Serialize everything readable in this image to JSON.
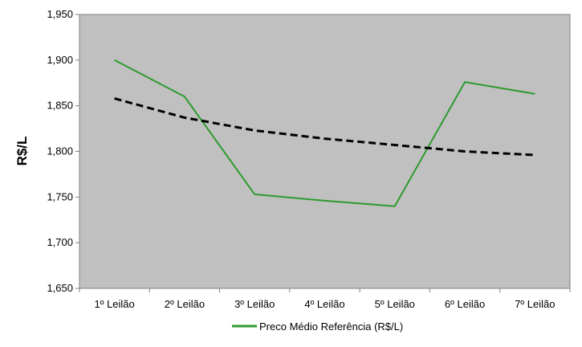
{
  "chart_data": {
    "type": "line",
    "categories": [
      "1º Leilão",
      "2º Leilão",
      "3º Leilão",
      "4º Leilão",
      "5º Leilão",
      "6º Leilão",
      "7º Leilão"
    ],
    "series": [
      {
        "name": "Preco Médio Referência (R$/L)",
        "values": [
          1.9,
          1.86,
          1.753,
          1.746,
          1.74,
          1.876,
          1.863
        ],
        "color": "#2e9a2e",
        "style": "solid",
        "in_legend": true
      },
      {
        "values": [
          1.858,
          1.837,
          1.823,
          1.814,
          1.807,
          1.8,
          1.796
        ],
        "color": "#000000",
        "style": "dashed",
        "in_legend": false
      }
    ],
    "ylabel": "R$/L",
    "xlabel": "",
    "ylim": [
      1.65,
      1.95
    ],
    "yticks": [
      1.65,
      1.7,
      1.75,
      1.8,
      1.85,
      1.9,
      1.95
    ],
    "ytick_labels": [
      "1,650",
      "1,700",
      "1,750",
      "1,800",
      "1,850",
      "1,900",
      "1,950"
    ],
    "plot_background": "#c0c0c0",
    "grid": false,
    "legend_position": "bottom-center"
  }
}
